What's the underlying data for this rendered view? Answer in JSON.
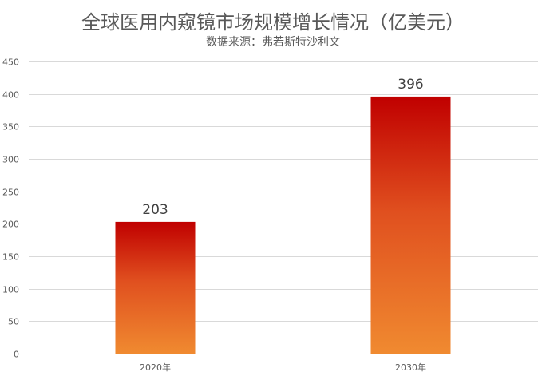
{
  "chart_data": {
    "type": "bar",
    "title": "全球医用内窥镜市场规模增长情况（亿美元）",
    "subtitle": "数据来源：弗若斯特沙利文",
    "categories": [
      "2020年",
      "2030年"
    ],
    "values": [
      203,
      396
    ],
    "data_labels": [
      "203",
      "396"
    ],
    "ylim": [
      0,
      450
    ],
    "yticks": [
      0,
      50,
      100,
      150,
      200,
      250,
      300,
      350,
      400,
      450
    ],
    "grid": true,
    "legend": "none",
    "colors": {
      "bar_top": "#c00000",
      "bar_bottom": "#f08a30",
      "grid": "#d9d9d9"
    }
  }
}
